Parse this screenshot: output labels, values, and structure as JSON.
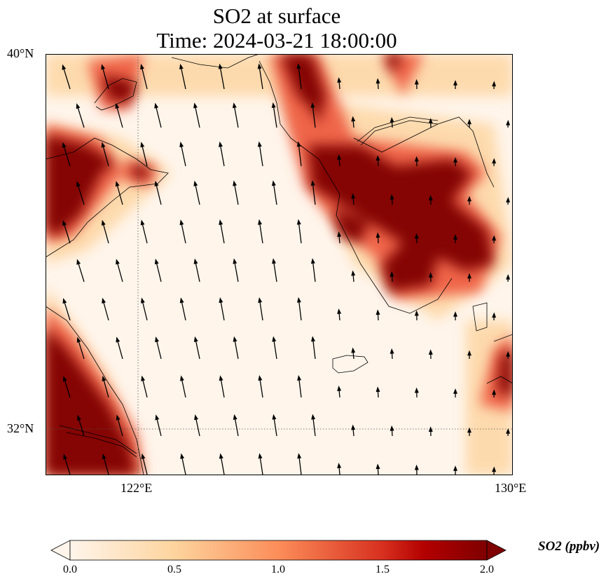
{
  "title": {
    "line1": "SO2 at surface",
    "line2": "Time: 2024-03-21 18:00:00"
  },
  "axes": {
    "lat_ticks": [
      "40°N",
      "32°N"
    ],
    "lon_ticks": [
      "122°E",
      "130°E"
    ],
    "lon_range": [
      120,
      130
    ],
    "lat_range": [
      31,
      40
    ]
  },
  "colorbar": {
    "label": "SO2 (ppbv)",
    "ticks": [
      "0.0",
      "0.5",
      "1.0",
      "1.5",
      "2.0"
    ],
    "range": [
      0,
      2
    ],
    "extend": "both",
    "colormap": [
      "#fff5eb",
      "#fdd49e",
      "#fc8d59",
      "#d7301f",
      "#b30000",
      "#7f0000"
    ]
  }
}
